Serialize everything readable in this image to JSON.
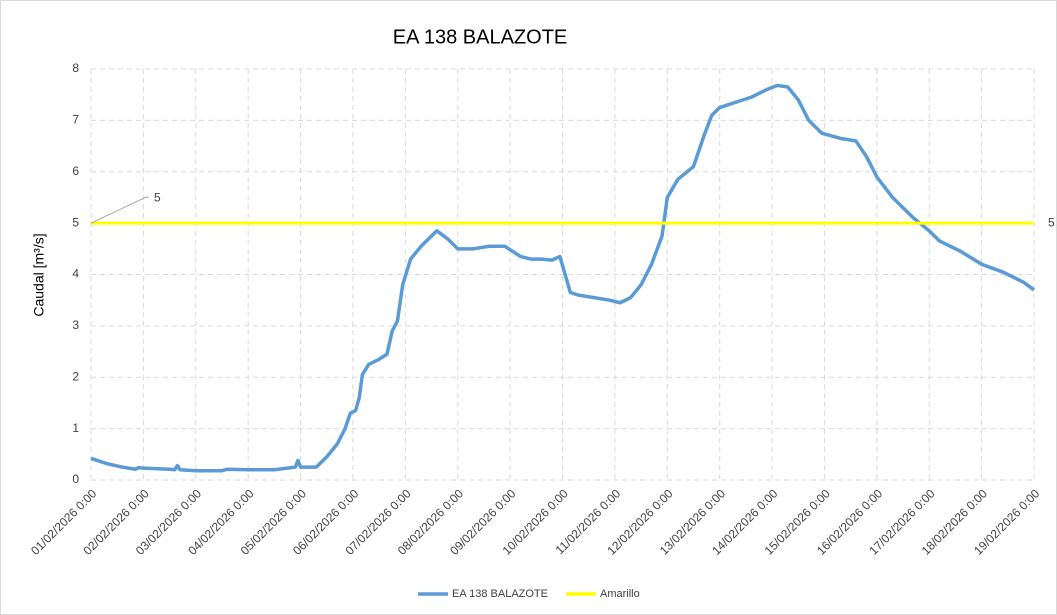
{
  "chart_data": {
    "type": "line",
    "title": "EA 138 BALAZOTE",
    "ylabel": "Caudal [m³/s]",
    "xlim": [
      0,
      18
    ],
    "ylim": [
      0,
      8
    ],
    "yticks": [
      0,
      1,
      2,
      3,
      4,
      5,
      6,
      7,
      8
    ],
    "grid": true,
    "legend": "bottom",
    "xticks": [
      {
        "value": 0,
        "label": "01/02/2026 0:00"
      },
      {
        "value": 1,
        "label": "02/02/2026 0:00"
      },
      {
        "value": 2,
        "label": "03/02/2026 0:00"
      },
      {
        "value": 3,
        "label": "04/02/2026 0:00"
      },
      {
        "value": 4,
        "label": "05/02/2026 0:00"
      },
      {
        "value": 5,
        "label": "06/02/2026 0:00"
      },
      {
        "value": 6,
        "label": "07/02/2026 0:00"
      },
      {
        "value": 7,
        "label": "08/02/2026 0:00"
      },
      {
        "value": 8,
        "label": "09/02/2026 0:00"
      },
      {
        "value": 9,
        "label": "10/02/2026 0:00"
      },
      {
        "value": 10,
        "label": "11/02/2026 0:00"
      },
      {
        "value": 11,
        "label": "12/02/2026 0:00"
      },
      {
        "value": 12,
        "label": "13/02/2026 0:00"
      },
      {
        "value": 13,
        "label": "14/02/2026 0:00"
      },
      {
        "value": 14,
        "label": "15/02/2026 0:00"
      },
      {
        "value": 15,
        "label": "16/02/2026 0:00"
      },
      {
        "value": 16,
        "label": "17/02/2026 0:00"
      },
      {
        "value": 17,
        "label": "18/02/2026 0:00"
      },
      {
        "value": 18,
        "label": "19/02/2026 0:00"
      }
    ],
    "series": [
      {
        "name": "EA 138 BALAZOTE",
        "color": "#5b9bd5",
        "x": [
          0,
          0.3,
          0.6,
          0.85,
          0.9,
          1.0,
          1.5,
          1.6,
          1.65,
          1.7,
          2.0,
          2.5,
          2.6,
          3.0,
          3.5,
          3.9,
          3.95,
          4.0,
          4.3,
          4.5,
          4.7,
          4.85,
          4.95,
          5.05,
          5.12,
          5.18,
          5.3,
          5.5,
          5.65,
          5.75,
          5.85,
          5.95,
          6.1,
          6.3,
          6.5,
          6.6,
          6.8,
          7.0,
          7.3,
          7.6,
          7.9,
          8.2,
          8.4,
          8.6,
          8.8,
          8.95,
          9.05,
          9.15,
          9.3,
          9.6,
          9.9,
          10.1,
          10.3,
          10.5,
          10.7,
          10.9,
          11.0,
          11.2,
          11.5,
          11.7,
          11.85,
          12.0,
          12.3,
          12.6,
          12.9,
          13.1,
          13.3,
          13.5,
          13.7,
          13.95,
          14.3,
          14.6,
          14.8,
          15.0,
          15.3,
          15.5,
          15.7,
          16.0,
          16.2,
          16.6,
          17.0,
          17.4,
          17.8,
          18.0
        ],
        "values": [
          0.42,
          0.32,
          0.25,
          0.21,
          0.24,
          0.23,
          0.21,
          0.2,
          0.28,
          0.2,
          0.18,
          0.18,
          0.21,
          0.2,
          0.2,
          0.25,
          0.38,
          0.25,
          0.25,
          0.45,
          0.7,
          1.0,
          1.3,
          1.35,
          1.6,
          2.05,
          2.25,
          2.35,
          2.45,
          2.9,
          3.1,
          3.8,
          4.3,
          4.55,
          4.75,
          4.85,
          4.7,
          4.5,
          4.5,
          4.55,
          4.55,
          4.35,
          4.3,
          4.3,
          4.28,
          4.35,
          4.0,
          3.65,
          3.6,
          3.55,
          3.5,
          3.45,
          3.55,
          3.8,
          4.2,
          4.75,
          5.5,
          5.85,
          6.1,
          6.7,
          7.1,
          7.25,
          7.35,
          7.45,
          7.6,
          7.68,
          7.65,
          7.4,
          7.0,
          6.75,
          6.65,
          6.6,
          6.3,
          5.9,
          5.5,
          5.3,
          5.1,
          4.85,
          4.65,
          4.45,
          4.2,
          4.05,
          3.85,
          3.7
        ]
      },
      {
        "name": "Amarillo",
        "color": "#ffff00",
        "x": [
          0,
          18
        ],
        "values": [
          5,
          5
        ]
      }
    ]
  }
}
